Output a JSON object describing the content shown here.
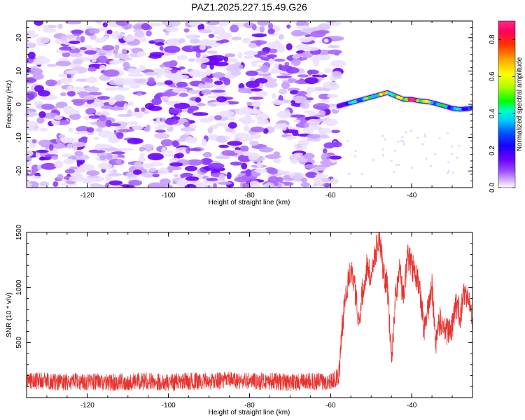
{
  "title": "PAZ1.2025.227.15.49.G26",
  "chart_data": [
    {
      "type": "heatmap",
      "xlabel": "Height of straight line (km)",
      "ylabel": "Frequency (Hz)",
      "xlim": [
        -135,
        -25
      ],
      "ylim": [
        -25,
        25
      ],
      "xticks": [
        -120,
        -100,
        -80,
        -60,
        -40
      ],
      "yticks": [
        -20,
        -10,
        0,
        10,
        20
      ],
      "grid": false,
      "colorbar": {
        "label": "Normalized spectral amplitude",
        "range": [
          0,
          0.9
        ],
        "ticks": [
          0.0,
          0.2,
          0.4,
          0.6,
          0.8
        ],
        "colors": [
          "#ffffff",
          "#d9b8ff",
          "#9a4dff",
          "#6a00ff",
          "#1a00ff",
          "#0055ff",
          "#00c8ff",
          "#00ffc8",
          "#00ff00",
          "#a8ff00",
          "#ffff00",
          "#ffb000",
          "#ff3000",
          "#ff0060",
          "#ff2a8a"
        ]
      },
      "noise_region_x": [
        -135,
        -58
      ],
      "signal_trace": {
        "x": [
          -58,
          -55,
          -52,
          -49,
          -46,
          -44,
          -42,
          -40,
          -38,
          -36,
          -34,
          -32,
          -30,
          -28,
          -26,
          -25
        ],
        "frequency": [
          -0.5,
          0.5,
          1.5,
          2.5,
          3.5,
          2.5,
          1.5,
          1.5,
          1.0,
          0.8,
          0.2,
          -0.5,
          -1.2,
          -1.5,
          -1.3,
          -1.0
        ],
        "amplitude": [
          0.2,
          0.45,
          0.55,
          0.6,
          0.8,
          0.55,
          0.85,
          0.9,
          0.85,
          0.6,
          0.55,
          0.5,
          0.45,
          0.45,
          0.4,
          0.3
        ]
      }
    },
    {
      "type": "line",
      "xlabel": "Height of straight line (km)",
      "ylabel": "SNR (10 * v/v)",
      "xlim": [
        -135,
        -25
      ],
      "ylim": [
        0,
        1500
      ],
      "xticks": [
        -120,
        -100,
        -80,
        -60,
        -40
      ],
      "yticks": [
        500,
        1000,
        1500
      ],
      "grid": false,
      "color": "#e8322e",
      "series": [
        {
          "x": [
            -135,
            -130,
            -125,
            -120,
            -115,
            -110,
            -105,
            -100,
            -95,
            -90,
            -85,
            -80,
            -75,
            -70,
            -65,
            -60,
            -58,
            -57,
            -56,
            -55,
            -54,
            -53,
            -52,
            -51,
            -50,
            -49,
            -48,
            -47,
            -46,
            -45,
            -44,
            -43,
            -42,
            -41,
            -40,
            -39,
            -38,
            -37,
            -36,
            -35,
            -34,
            -33,
            -32,
            -31,
            -30,
            -29,
            -28,
            -27,
            -26,
            -25
          ],
          "values": [
            150,
            140,
            130,
            140,
            130,
            135,
            140,
            130,
            140,
            140,
            150,
            140,
            140,
            130,
            135,
            140,
            180,
            700,
            1000,
            1200,
            1000,
            700,
            1000,
            1200,
            1100,
            1300,
            1450,
            1150,
            1000,
            350,
            900,
            1150,
            900,
            1300,
            1200,
            1100,
            1000,
            600,
            800,
            1000,
            500,
            700,
            600,
            600,
            650,
            850,
            750,
            950,
            900,
            700
          ]
        }
      ]
    }
  ]
}
